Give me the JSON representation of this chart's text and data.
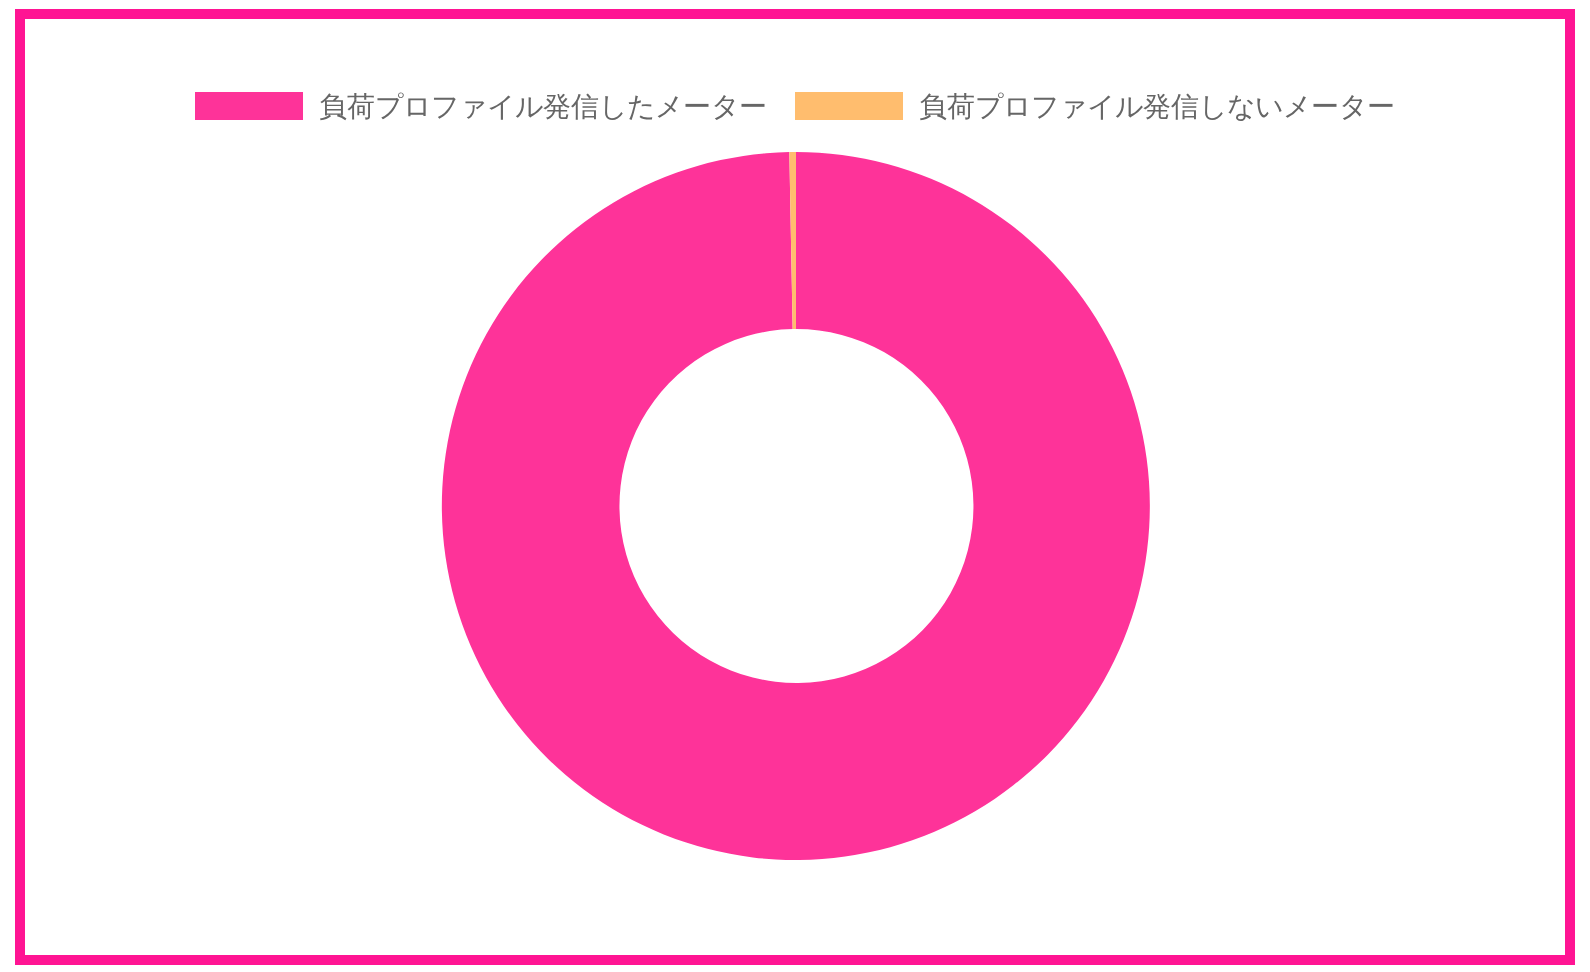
{
  "chart_data": {
    "type": "donut",
    "categories": [
      "負荷プロファイル発信したメーター",
      "負荷プロファイル発信しないメーター"
    ],
    "values": [
      99.7,
      0.3
    ],
    "colors": [
      "#fe3399",
      "#ffbd6e"
    ],
    "legend": "top"
  }
}
